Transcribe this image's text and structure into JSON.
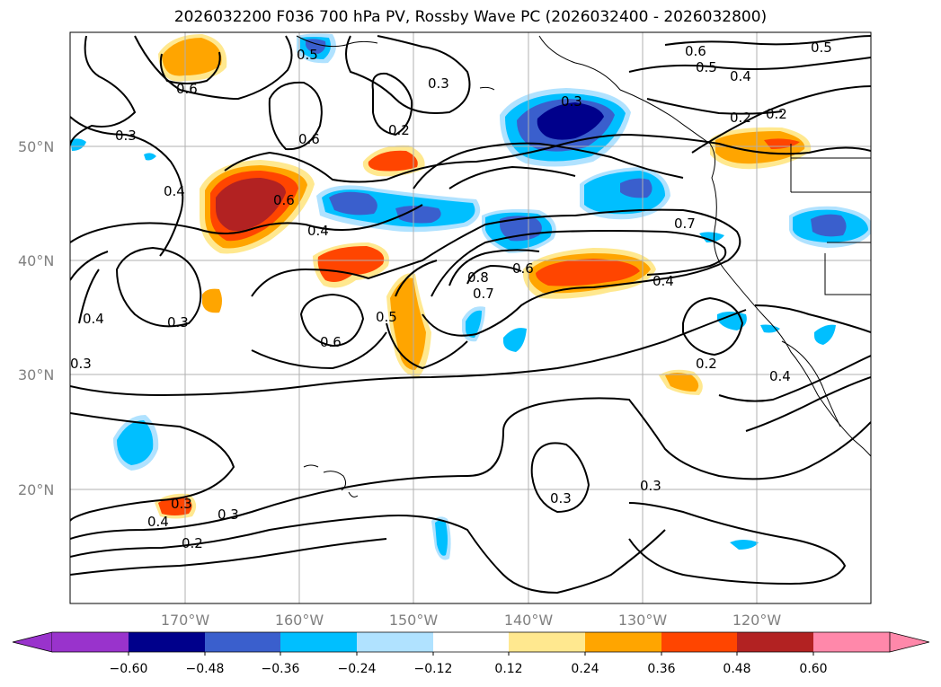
{
  "title": "2026032200 F036 700 hPa PV, Rossby Wave PC (2026032400 - 2026032800)",
  "axes": {
    "lat_labels": [
      "50°N",
      "40°N",
      "30°N",
      "20°N"
    ],
    "lon_labels": [
      "170°W",
      "160°W",
      "150°W",
      "140°W",
      "130°W",
      "120°W"
    ]
  },
  "colorbar": {
    "ticks": [
      "−0.60",
      "−0.48",
      "−0.36",
      "−0.24",
      "−0.12",
      "0.12",
      "0.24",
      "0.36",
      "0.48",
      "0.60"
    ],
    "colors": [
      "#9933cc",
      "#00008b",
      "#3a5fcd",
      "#00bfff",
      "#b0e2ff",
      "#ffffff",
      "#ffe88f",
      "#ffa500",
      "#ff4500",
      "#b22222",
      "#ff88aa"
    ]
  },
  "contour_labels": [
    "0.6",
    "0.5",
    "0.6",
    "0.5",
    "0.4",
    "0.2",
    "0.2",
    "0.3",
    "0.3",
    "0.5",
    "0.6",
    "0.3",
    "0.2",
    "0.4",
    "0.6",
    "0.4",
    "0.7",
    "0.8",
    "0.7",
    "0.6",
    "0.4",
    "0.5",
    "0.3",
    "0.6",
    "0.4",
    "0.3",
    "0.2",
    "0.4",
    "0.3",
    "0.3",
    "0.4",
    "0.3",
    "0.3",
    "0.2"
  ]
}
